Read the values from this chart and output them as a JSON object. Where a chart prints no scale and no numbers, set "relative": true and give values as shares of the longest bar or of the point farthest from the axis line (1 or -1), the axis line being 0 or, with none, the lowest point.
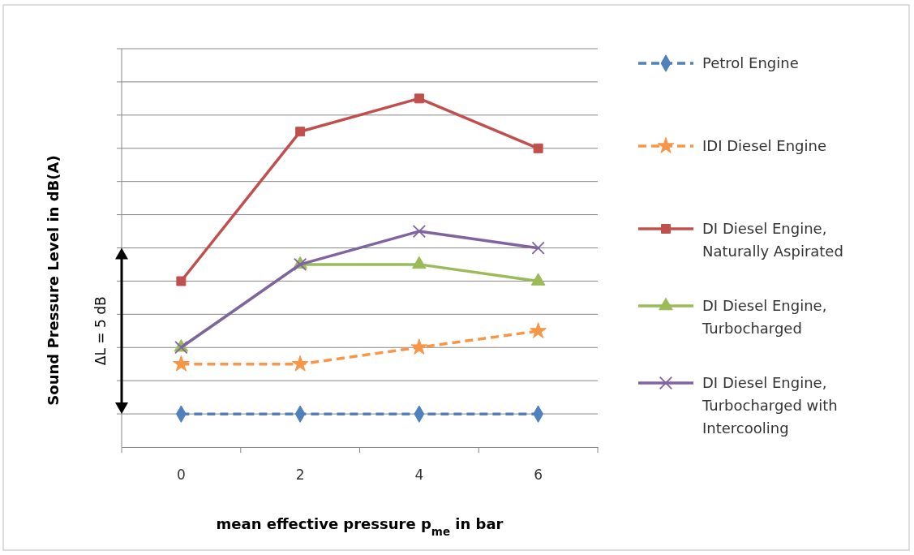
{
  "chart_data": {
    "type": "line",
    "relative": true,
    "xlabel": "mean effective pressure p$_{me}$ in bar",
    "ylabel": "Sound Pressure Level in dB(A)",
    "categories": [
      "0",
      "2",
      "4",
      "6"
    ],
    "series": [
      {
        "name": "Petrol Engine",
        "color": "#4f81bd",
        "marker": "diamond",
        "line_style": "dashed",
        "values": [
          0.095,
          0.095,
          0.095,
          0.095
        ]
      },
      {
        "name": "IDI Diesel Engine",
        "color": "#f79646",
        "marker": "star",
        "line_style": "dashed",
        "values": [
          0.238,
          0.238,
          0.286,
          0.333
        ]
      },
      {
        "name": "DI Diesel Engine, Naturally Aspirated",
        "color": "#c0504d",
        "marker": "square",
        "line_style": "solid",
        "values": [
          0.476,
          0.905,
          1,
          0.857
        ]
      },
      {
        "name": "DI Diesel Engine, Turbocharged",
        "color": "#9bbb59",
        "marker": "triangle",
        "line_style": "solid",
        "values": [
          0.286,
          0.524,
          0.524,
          0.476
        ]
      },
      {
        "name": "DI Diesel Engine, Turbocharged with Intercooling",
        "color": "#8064a2",
        "marker": "cross",
        "line_style": "solid",
        "values": [
          0.286,
          0.524,
          0.619,
          0.571
        ]
      }
    ],
    "annotations": [
      "ΔL = 5 dB"
    ],
    "grid": "y",
    "legend": "right"
  }
}
